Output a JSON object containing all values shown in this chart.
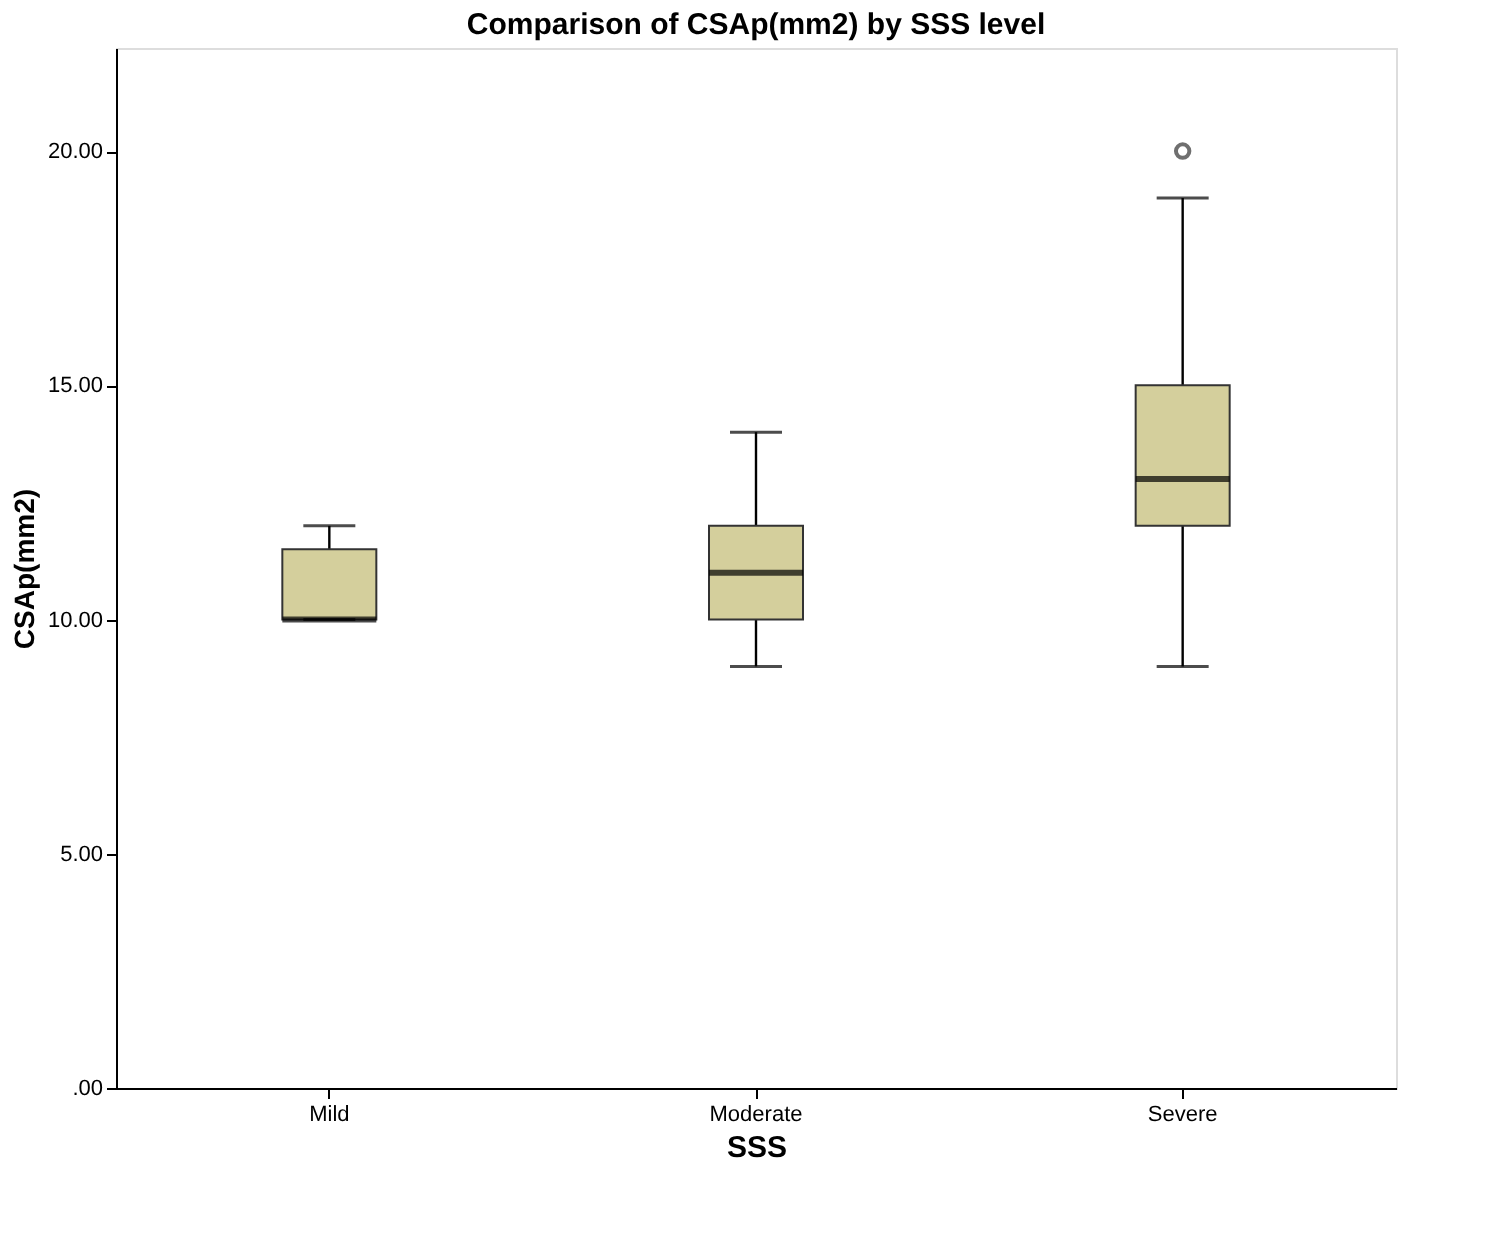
{
  "chart_data": {
    "type": "box",
    "title": "Comparison of CSAp(mm2) by SSS level",
    "xlabel": "SSS",
    "ylabel": "CSAp(mm2)",
    "categories": [
      "Mild",
      "Moderate",
      "Severe"
    ],
    "boxes": [
      {
        "low": 10,
        "q1": 10,
        "median": 10,
        "q3": 11.5,
        "high": 12
      },
      {
        "low": 9,
        "q1": 10,
        "median": 11,
        "q3": 12,
        "high": 14
      },
      {
        "low": 9,
        "q1": 12,
        "median": 13,
        "q3": 15,
        "high": 19,
        "outliers": [
          20
        ]
      }
    ],
    "color": "#d4cf9c",
    "ylim": [
      0,
      22.2
    ],
    "yticks": [
      {
        "value": 0,
        "label": ".00"
      },
      {
        "value": 5,
        "label": "5.00"
      },
      {
        "value": 10,
        "label": "10.00"
      },
      {
        "value": 15,
        "label": "15.00"
      },
      {
        "value": 20,
        "label": "20.00"
      }
    ],
    "grid": false
  }
}
